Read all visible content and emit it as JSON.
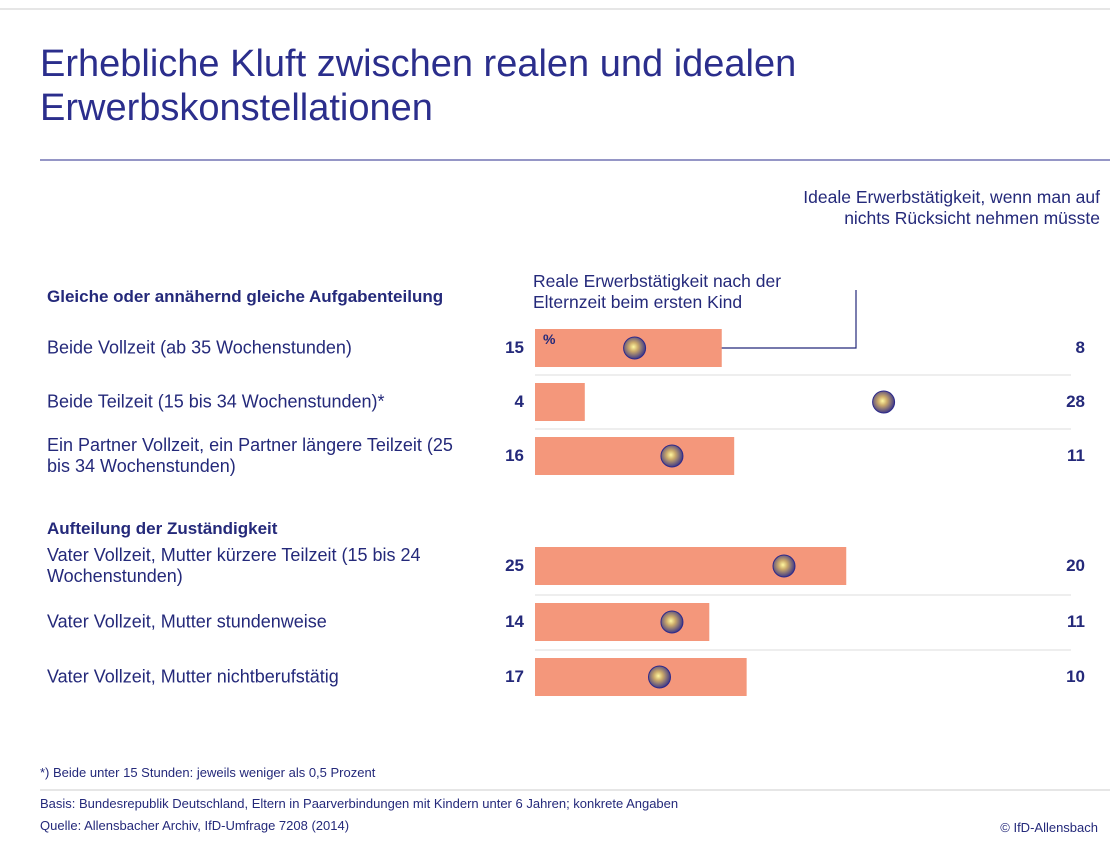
{
  "chart_data": {
    "type": "bar",
    "title": "Erhebliche Kluft zwischen realen und idealen Erwerbskonstellationen",
    "unit": "%",
    "groups": [
      {
        "name": "Gleiche oder annähernd gleiche Aufgabenteilung",
        "categories": [
          "Beide Vollzeit (ab 35 Wochenstunden)",
          "Beide Teilzeit (15 bis 34 Wochenstunden)*",
          "Ein Partner Vollzeit, ein Partner längere Teilzeit (25 bis 34 Wochenstunden)"
        ]
      },
      {
        "name": "Aufteilung der Zuständigkeit",
        "categories": [
          "Vater Vollzeit, Mutter kürzere Teilzeit (15 bis 24 Wochenstunden)",
          "Vater Vollzeit, Mutter stundenweise",
          "Vater Vollzeit, Mutter nichtberufstätig"
        ]
      }
    ],
    "series": [
      {
        "name": "Reale Erwerbstätigkeit nach der Elternzeit beim ersten Kind",
        "color": "#f4977b",
        "values": [
          15,
          4,
          16,
          25,
          14,
          17
        ]
      },
      {
        "name": "Ideale Erwerbstätigkeit, wenn man auf nichts Rücksicht nehmen müsste",
        "color": "#3b3a8f",
        "values": [
          8,
          28,
          11,
          20,
          11,
          10
        ]
      }
    ],
    "footnote": "*) Beide unter 15 Stunden: jeweils weniger als 0,5 Prozent",
    "basis": "Basis: Bundesrepublik Deutschland, Eltern in Paarverbindungen mit Kindern unter 6 Jahren; konkrete Angaben",
    "source": "Quelle: Allensbacher Archiv, IfD-Umfrage 7208 (2014)",
    "copyright": "© IfD-Allensbach"
  }
}
